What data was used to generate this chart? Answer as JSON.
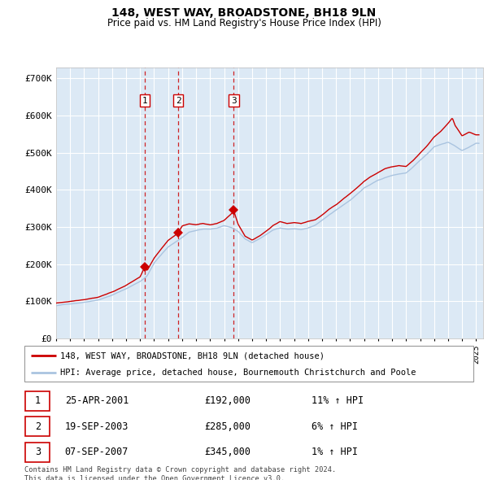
{
  "title": "148, WEST WAY, BROADSTONE, BH18 9LN",
  "subtitle": "Price paid vs. HM Land Registry's House Price Index (HPI)",
  "footer": "Contains HM Land Registry data © Crown copyright and database right 2024.\nThis data is licensed under the Open Government Licence v3.0.",
  "legend_line1": "148, WEST WAY, BROADSTONE, BH18 9LN (detached house)",
  "legend_line2": "HPI: Average price, detached house, Bournemouth Christchurch and Poole",
  "transactions": [
    {
      "num": 1,
      "date": "25-APR-2001",
      "price": 192000,
      "pct": "11%",
      "dir": "↑",
      "year": 2001.32
    },
    {
      "num": 2,
      "date": "19-SEP-2003",
      "price": 285000,
      "pct": "6%",
      "dir": "↑",
      "year": 2003.72
    },
    {
      "num": 3,
      "date": "07-SEP-2007",
      "price": 345000,
      "pct": "1%",
      "dir": "↑",
      "year": 2007.69
    }
  ],
  "hpi_color": "#aac4e0",
  "price_color": "#cc0000",
  "marker_color": "#cc0000",
  "vline_color": "#cc0000",
  "plot_bg": "#dce9f5",
  "grid_color": "#ffffff",
  "ylim": [
    0,
    730000
  ],
  "xlim_start": 1995.0,
  "xlim_end": 2025.5,
  "yticks": [
    0,
    100000,
    200000,
    300000,
    400000,
    500000,
    600000,
    700000
  ],
  "ytick_labels": [
    "£0",
    "£100K",
    "£200K",
    "£300K",
    "£400K",
    "£500K",
    "£600K",
    "£700K"
  ],
  "hpi_anchors": [
    [
      1995.0,
      88000
    ],
    [
      1996.0,
      93000
    ],
    [
      1997.0,
      98000
    ],
    [
      1998.0,
      105000
    ],
    [
      1999.0,
      118000
    ],
    [
      2000.0,
      135000
    ],
    [
      2001.0,
      155000
    ],
    [
      2001.5,
      170000
    ],
    [
      2002.0,
      205000
    ],
    [
      2003.0,
      248000
    ],
    [
      2003.8,
      268000
    ],
    [
      2004.5,
      288000
    ],
    [
      2005.0,
      292000
    ],
    [
      2005.5,
      296000
    ],
    [
      2006.0,
      295000
    ],
    [
      2006.5,
      298000
    ],
    [
      2007.0,
      305000
    ],
    [
      2007.5,
      300000
    ],
    [
      2008.0,
      288000
    ],
    [
      2008.5,
      268000
    ],
    [
      2009.0,
      258000
    ],
    [
      2009.5,
      268000
    ],
    [
      2010.0,
      280000
    ],
    [
      2010.5,
      292000
    ],
    [
      2011.0,
      298000
    ],
    [
      2011.5,
      295000
    ],
    [
      2012.0,
      296000
    ],
    [
      2012.5,
      294000
    ],
    [
      2013.0,
      298000
    ],
    [
      2013.5,
      305000
    ],
    [
      2014.0,
      318000
    ],
    [
      2014.5,
      332000
    ],
    [
      2015.0,
      345000
    ],
    [
      2015.5,
      358000
    ],
    [
      2016.0,
      372000
    ],
    [
      2016.5,
      388000
    ],
    [
      2017.0,
      405000
    ],
    [
      2017.5,
      415000
    ],
    [
      2018.0,
      425000
    ],
    [
      2018.5,
      432000
    ],
    [
      2019.0,
      438000
    ],
    [
      2019.5,
      442000
    ],
    [
      2020.0,
      445000
    ],
    [
      2020.5,
      460000
    ],
    [
      2021.0,
      478000
    ],
    [
      2021.5,
      495000
    ],
    [
      2022.0,
      515000
    ],
    [
      2022.5,
      522000
    ],
    [
      2023.0,
      528000
    ],
    [
      2023.5,
      518000
    ],
    [
      2024.0,
      505000
    ],
    [
      2024.5,
      515000
    ],
    [
      2025.0,
      525000
    ]
  ],
  "price_anchors": [
    [
      1995.0,
      95000
    ],
    [
      1996.0,
      100000
    ],
    [
      1997.0,
      106000
    ],
    [
      1998.0,
      113000
    ],
    [
      1999.0,
      127000
    ],
    [
      2000.0,
      145000
    ],
    [
      2001.0,
      168000
    ],
    [
      2001.3,
      192000
    ],
    [
      2001.5,
      185000
    ],
    [
      2002.0,
      218000
    ],
    [
      2003.0,
      265000
    ],
    [
      2003.7,
      285000
    ],
    [
      2004.0,
      305000
    ],
    [
      2004.5,
      310000
    ],
    [
      2005.0,
      308000
    ],
    [
      2005.5,
      312000
    ],
    [
      2006.0,
      308000
    ],
    [
      2006.5,
      312000
    ],
    [
      2007.0,
      320000
    ],
    [
      2007.7,
      345000
    ],
    [
      2008.0,
      310000
    ],
    [
      2008.5,
      278000
    ],
    [
      2009.0,
      268000
    ],
    [
      2009.5,
      278000
    ],
    [
      2010.0,
      292000
    ],
    [
      2010.5,
      308000
    ],
    [
      2011.0,
      318000
    ],
    [
      2011.5,
      312000
    ],
    [
      2012.0,
      315000
    ],
    [
      2012.5,
      312000
    ],
    [
      2013.0,
      318000
    ],
    [
      2013.5,
      322000
    ],
    [
      2014.0,
      335000
    ],
    [
      2014.5,
      350000
    ],
    [
      2015.0,
      362000
    ],
    [
      2015.5,
      378000
    ],
    [
      2016.0,
      392000
    ],
    [
      2016.5,
      408000
    ],
    [
      2017.0,
      425000
    ],
    [
      2017.5,
      438000
    ],
    [
      2018.0,
      448000
    ],
    [
      2018.5,
      458000
    ],
    [
      2019.0,
      462000
    ],
    [
      2019.5,
      465000
    ],
    [
      2020.0,
      462000
    ],
    [
      2020.5,
      478000
    ],
    [
      2021.0,
      498000
    ],
    [
      2021.5,
      518000
    ],
    [
      2022.0,
      542000
    ],
    [
      2022.5,
      558000
    ],
    [
      2023.0,
      578000
    ],
    [
      2023.3,
      592000
    ],
    [
      2023.5,
      572000
    ],
    [
      2024.0,
      545000
    ],
    [
      2024.5,
      555000
    ],
    [
      2025.0,
      548000
    ]
  ]
}
